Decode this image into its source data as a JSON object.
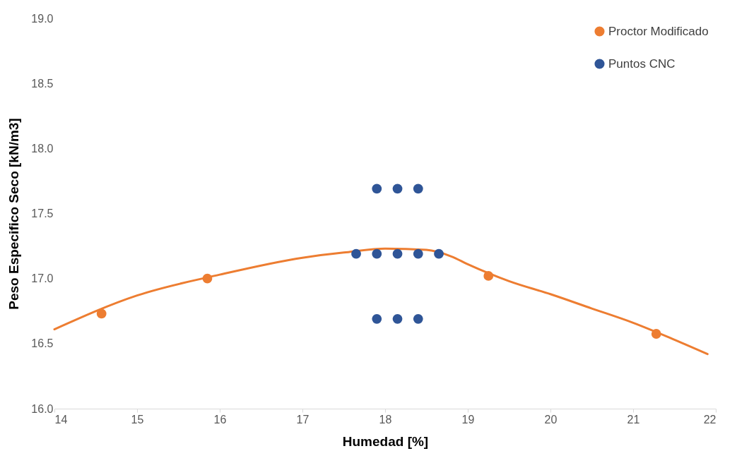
{
  "chart_data": {
    "type": "scatter",
    "xlabel": "Humedad [%]",
    "ylabel": "Peso Especifico Seco [kN/m3]",
    "xlim": [
      14,
      22
    ],
    "xticks": [
      14,
      15,
      16,
      17,
      18,
      19,
      20,
      21,
      22
    ],
    "ylim": [
      16,
      19
    ],
    "yticks": [
      {
        "value": 16,
        "label": "16.0"
      },
      {
        "value": 16.5,
        "label": "16.5"
      },
      {
        "value": 17,
        "label": "17.0"
      },
      {
        "value": 17.5,
        "label": "17.5"
      },
      {
        "value": 18,
        "label": "18.0"
      },
      {
        "value": 18.5,
        "label": "18.5"
      },
      {
        "value": 19,
        "label": "19.0"
      }
    ],
    "grid": false,
    "legend": "top right",
    "marker": "circle",
    "series": [
      {
        "type": "line",
        "color": "#ed7d31",
        "line_style": "solid",
        "marker": "none",
        "x": [
          14,
          15,
          16,
          17,
          17.5,
          18,
          18.5,
          18.8,
          19,
          19.5,
          20,
          20.5,
          21,
          21.5,
          21.9
        ],
        "values": [
          16.61,
          16.87,
          17.03,
          17.16,
          17.2,
          17.23,
          17.22,
          17.17,
          17.11,
          16.98,
          16.88,
          16.77,
          16.66,
          16.53,
          16.42
        ]
      },
      {
        "name": "Proctor Modificado",
        "color": "#ed7d31",
        "x": [
          14.57,
          15.85,
          19.25,
          21.28
        ],
        "values": [
          16.73,
          17.0,
          17.02,
          16.575
        ]
      },
      {
        "name": "Puntos CNC",
        "color": "#2f5597",
        "x": [
          17.9,
          18.15,
          18.4,
          17.65,
          17.9,
          18.15,
          18.4,
          18.65,
          17.9,
          18.15,
          18.4
        ],
        "values": [
          17.69,
          17.69,
          17.69,
          17.19,
          17.19,
          17.19,
          17.19,
          17.19,
          16.69,
          16.69,
          16.69
        ]
      }
    ]
  }
}
